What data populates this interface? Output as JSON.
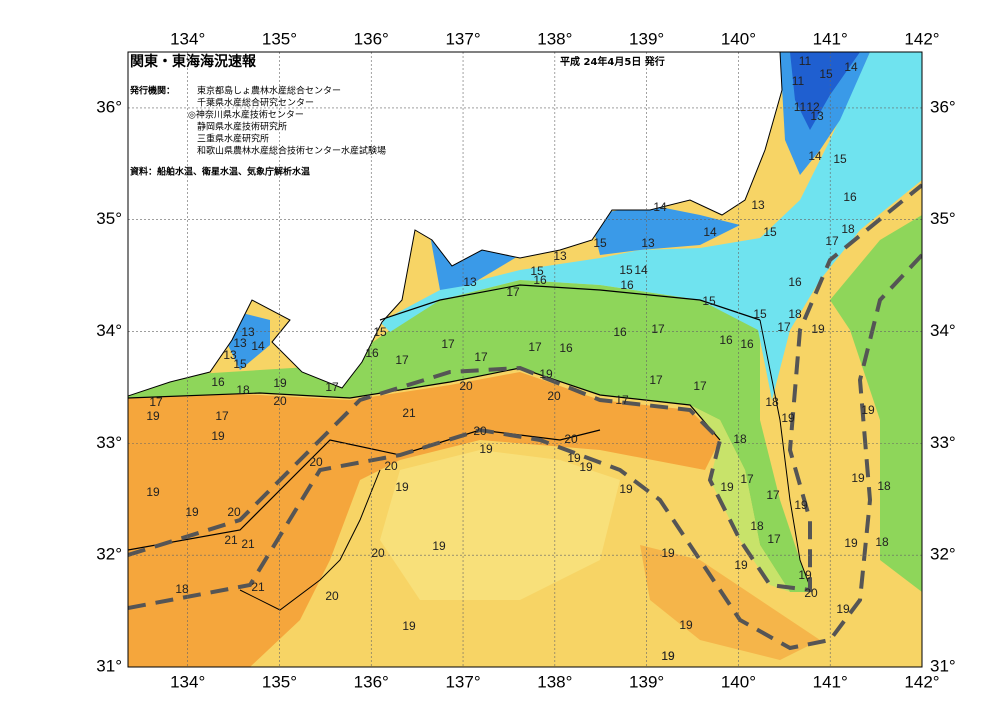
{
  "map": {
    "title": "関東・東海海況速報",
    "date": "平成 24年4月5日 発行",
    "publisher_label": "発行機関：",
    "publishers": [
      "東京都島しょ農林水産総合センター",
      "千葉県水産総合研究センター",
      "◎神奈川県水産技術センター",
      "静岡県水産技術研究所",
      "三重県水産研究所",
      "和歌山県農林水産総合技術センター水産試験場"
    ],
    "source": "資料：船舶水温、衛星水温、気象庁解析水温",
    "lon_range": [
      133.35,
      142
    ],
    "lat_range": [
      31,
      36.5
    ],
    "lon_ticks": [
      {
        "value": 134,
        "label": "134°"
      },
      {
        "value": 135,
        "label": "135°"
      },
      {
        "value": 136,
        "label": "136°"
      },
      {
        "value": 137,
        "label": "137°"
      },
      {
        "value": 138,
        "label": "138°"
      },
      {
        "value": 139,
        "label": "139°"
      },
      {
        "value": 140,
        "label": "140°"
      },
      {
        "value": 141,
        "label": "141°"
      },
      {
        "value": 142,
        "label": "142°"
      }
    ],
    "lat_ticks": [
      {
        "value": 31,
        "label": "31°"
      },
      {
        "value": 32,
        "label": "32°"
      },
      {
        "value": 33,
        "label": "33°"
      },
      {
        "value": 34,
        "label": "34°"
      },
      {
        "value": 35,
        "label": "35°"
      },
      {
        "value": 36,
        "label": "36°"
      }
    ],
    "isotherm_labels": [
      11,
      15,
      14,
      11,
      11,
      12,
      13,
      14,
      15,
      16,
      13,
      14,
      14,
      15,
      18,
      17,
      15,
      13,
      13,
      13,
      15,
      16,
      15,
      14,
      16,
      17,
      15,
      16,
      18,
      15,
      17,
      19,
      15,
      13,
      13,
      14,
      13,
      15,
      16,
      17,
      16,
      16,
      17,
      16,
      16,
      17,
      17,
      17,
      16,
      18,
      19,
      17,
      20,
      19,
      17,
      19,
      17,
      20,
      17,
      17,
      20,
      17,
      18,
      21,
      19,
      19,
      19,
      20,
      19,
      20,
      18,
      19,
      19,
      20,
      20,
      19,
      19,
      17,
      19,
      17,
      19,
      18,
      19,
      19,
      20,
      19,
      18,
      17,
      21,
      21,
      20,
      19,
      19,
      19,
      18,
      19,
      19,
      18,
      21,
      20,
      20,
      19,
      19,
      19,
      19,
      19
    ]
  }
}
